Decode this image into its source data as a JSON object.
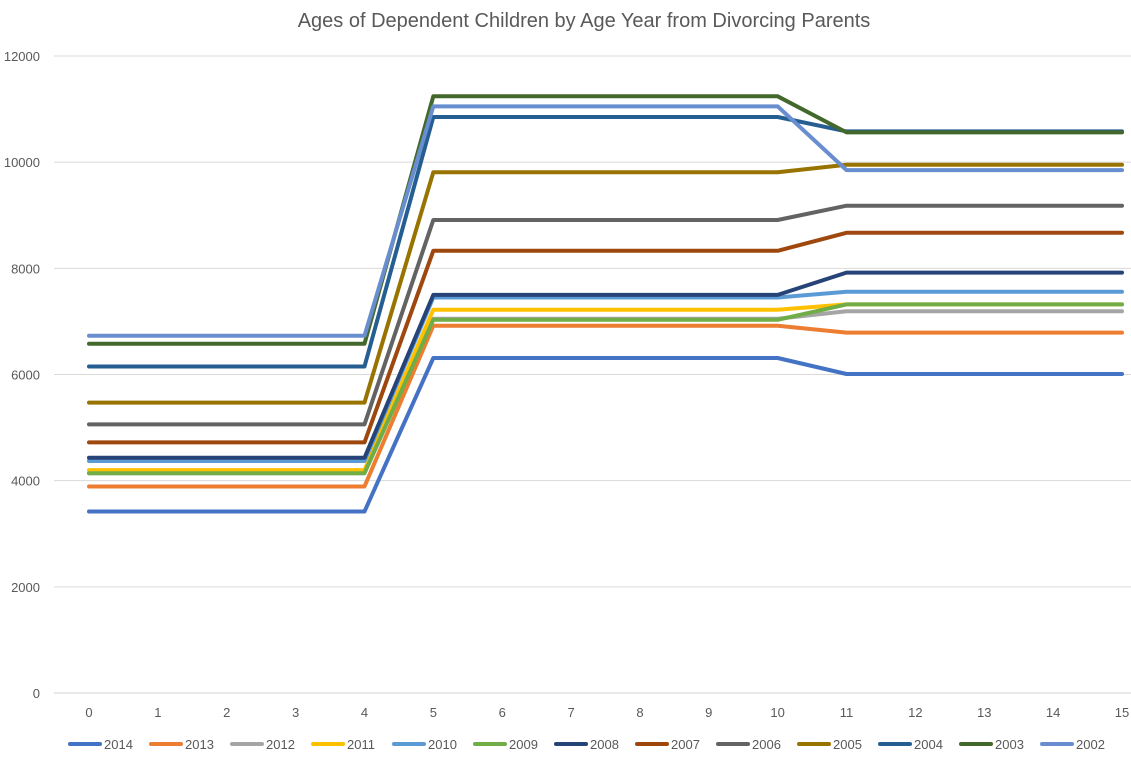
{
  "chart_data": {
    "type": "line",
    "title": "Ages of Dependent Children by Age Year from Divorcing Parents",
    "xlabel": "",
    "ylabel": "",
    "x": [
      0,
      1,
      2,
      3,
      4,
      5,
      6,
      7,
      8,
      9,
      10,
      11,
      12,
      13,
      14,
      15
    ],
    "ylim": [
      0,
      12000
    ],
    "yticks": [
      0,
      2000,
      4000,
      6000,
      8000,
      10000,
      12000
    ],
    "grid": "horizontal",
    "legend_position": "bottom",
    "series": [
      {
        "name": "2014",
        "color": "#4472C4",
        "values": [
          3420,
          3420,
          3420,
          3420,
          3420,
          6310,
          6310,
          6310,
          6310,
          6310,
          6310,
          6010,
          6010,
          6010,
          6010,
          6010
        ]
      },
      {
        "name": "2013",
        "color": "#ED7D31",
        "values": [
          3890,
          3890,
          3890,
          3890,
          3890,
          6920,
          6920,
          6920,
          6920,
          6920,
          6920,
          6790,
          6790,
          6790,
          6790,
          6790
        ]
      },
      {
        "name": "2012",
        "color": "#A5A5A5",
        "values": [
          4140,
          4140,
          4140,
          4140,
          4140,
          7050,
          7050,
          7050,
          7050,
          7050,
          7050,
          7190,
          7190,
          7190,
          7190,
          7190
        ]
      },
      {
        "name": "2011",
        "color": "#FFC000",
        "values": [
          4200,
          4200,
          4200,
          4200,
          4200,
          7220,
          7220,
          7220,
          7220,
          7220,
          7220,
          7320,
          7320,
          7320,
          7320,
          7320
        ]
      },
      {
        "name": "2010",
        "color": "#5B9BD5",
        "values": [
          4370,
          4370,
          4370,
          4370,
          4370,
          7450,
          7450,
          7450,
          7450,
          7450,
          7450,
          7560,
          7560,
          7560,
          7560,
          7560
        ]
      },
      {
        "name": "2009",
        "color": "#70AD47",
        "values": [
          4140,
          4140,
          4140,
          4140,
          4140,
          7030,
          7030,
          7030,
          7030,
          7030,
          7030,
          7320,
          7320,
          7320,
          7320,
          7320
        ]
      },
      {
        "name": "2008",
        "color": "#264478",
        "values": [
          4430,
          4430,
          4430,
          4430,
          4430,
          7500,
          7500,
          7500,
          7500,
          7500,
          7500,
          7920,
          7920,
          7920,
          7920,
          7920
        ]
      },
      {
        "name": "2007",
        "color": "#9E480E",
        "values": [
          4720,
          4720,
          4720,
          4720,
          4720,
          8330,
          8330,
          8330,
          8330,
          8330,
          8330,
          8670,
          8670,
          8670,
          8670,
          8670
        ]
      },
      {
        "name": "2006",
        "color": "#636363",
        "values": [
          5060,
          5060,
          5060,
          5060,
          5060,
          8910,
          8910,
          8910,
          8910,
          8910,
          8910,
          9180,
          9180,
          9180,
          9180,
          9180
        ]
      },
      {
        "name": "2005",
        "color": "#997300",
        "values": [
          5470,
          5470,
          5470,
          5470,
          5470,
          9810,
          9810,
          9810,
          9810,
          9810,
          9810,
          9950,
          9950,
          9950,
          9950,
          9950
        ]
      },
      {
        "name": "2004",
        "color": "#255E91",
        "values": [
          6150,
          6150,
          6150,
          6150,
          6150,
          10850,
          10850,
          10850,
          10850,
          10850,
          10850,
          10580,
          10580,
          10580,
          10580,
          10580
        ]
      },
      {
        "name": "2003",
        "color": "#43682B",
        "values": [
          6580,
          6580,
          6580,
          6580,
          6580,
          11240,
          11240,
          11240,
          11240,
          11240,
          11240,
          10560,
          10560,
          10560,
          10560,
          10560
        ]
      },
      {
        "name": "2002",
        "color": "#698ED0",
        "values": [
          6730,
          6730,
          6730,
          6730,
          6730,
          11050,
          11050,
          11050,
          11050,
          11050,
          11050,
          9850,
          9850,
          9850,
          9850,
          9850
        ]
      }
    ]
  }
}
